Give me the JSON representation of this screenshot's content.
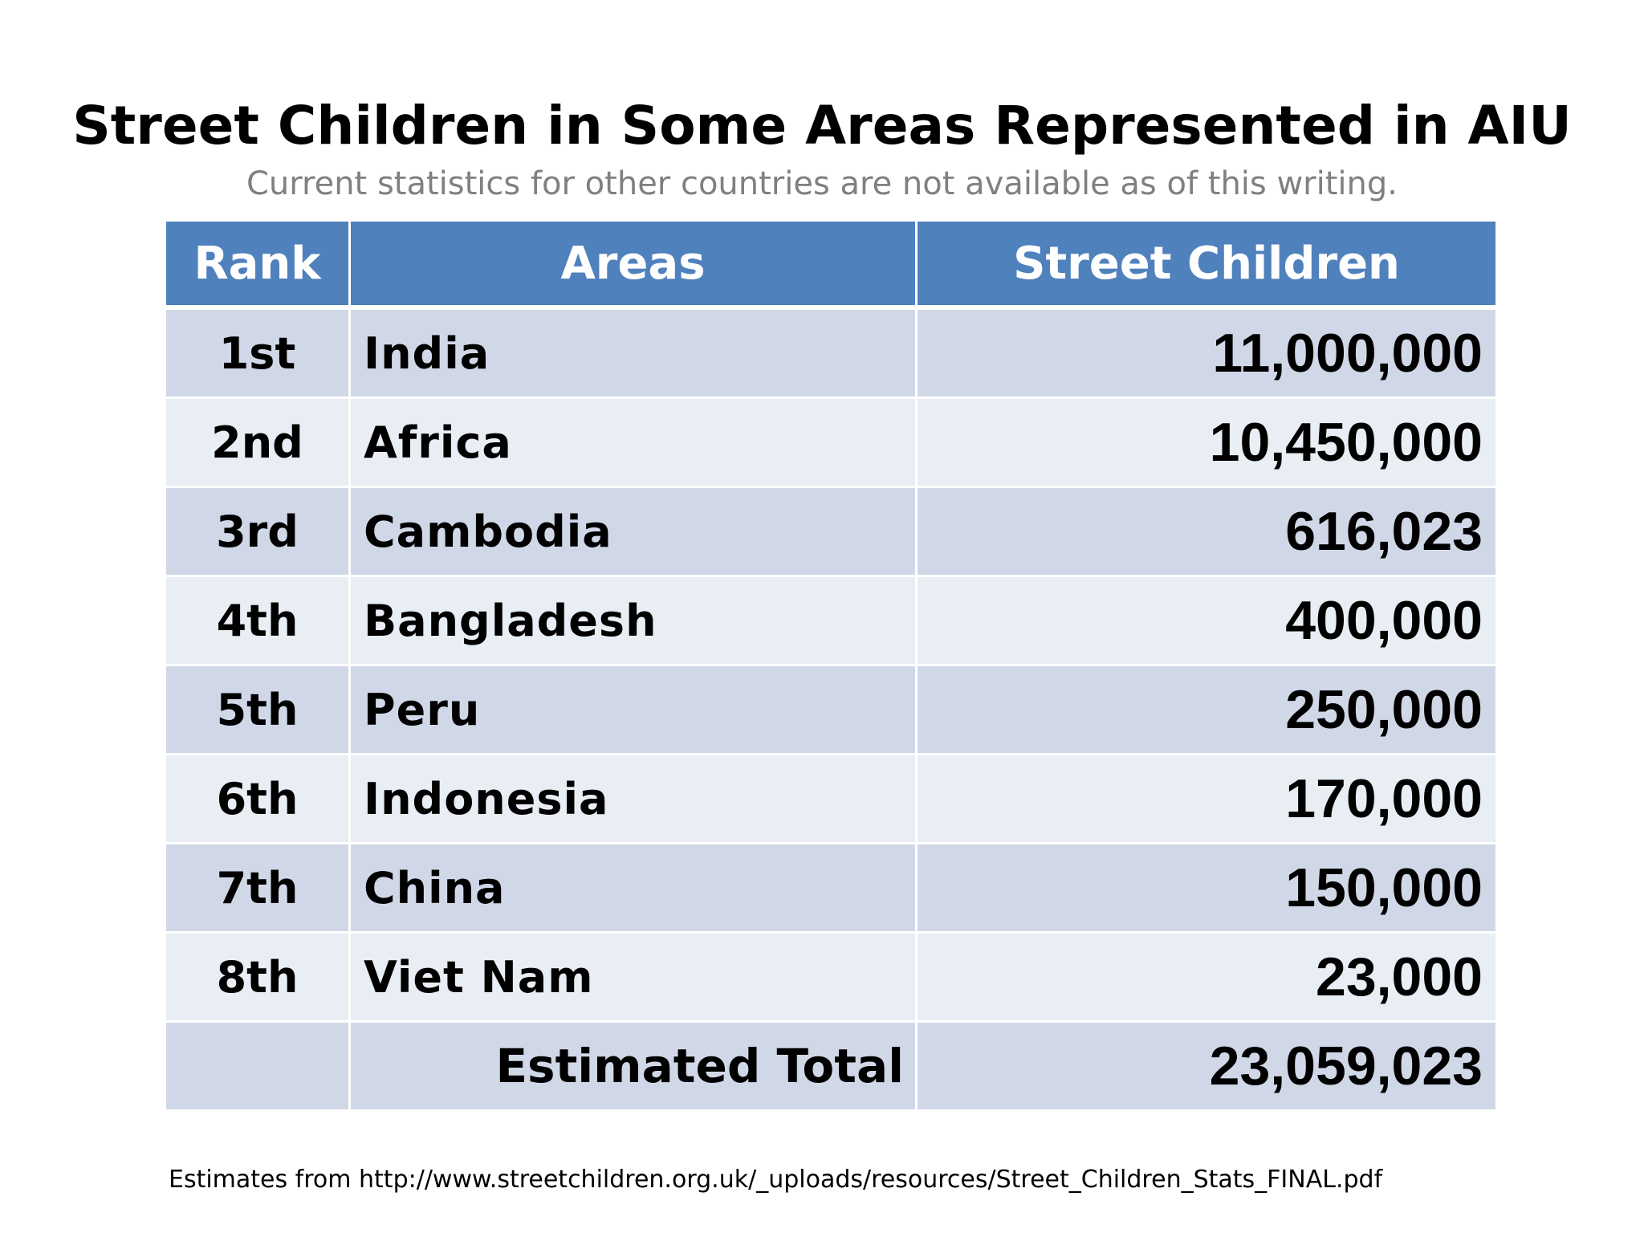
{
  "slide": {
    "title": "Street Children in Some Areas Represented in AIU",
    "subtitle": "Current statistics for other countries are not available as of this writing.",
    "source": "Estimates from http://www.streetchildren.org.uk/_uploads/resources/Street_Children_Stats_FINAL.pdf"
  },
  "table": {
    "headers": [
      "Rank",
      "Areas",
      "Street Children"
    ],
    "rows": [
      {
        "rank": "1st",
        "area": "India",
        "count": "11,000,000"
      },
      {
        "rank": "2nd",
        "area": "Africa",
        "count": "10,450,000"
      },
      {
        "rank": "3rd",
        "area": "Cambodia",
        "count": "616,023"
      },
      {
        "rank": "4th",
        "area": "Bangladesh",
        "count": "400,000"
      },
      {
        "rank": "5th",
        "area": "Peru",
        "count": "250,000"
      },
      {
        "rank": "6th",
        "area": "Indonesia",
        "count": "170,000"
      },
      {
        "rank": "7th",
        "area": "China",
        "count": "150,000"
      },
      {
        "rank": "8th",
        "area": "Viet Nam",
        "count": "23,000"
      }
    ],
    "total": {
      "rank": "",
      "label": "Estimated Total",
      "count": "23,059,023"
    }
  },
  "colors": {
    "header_bg": "#4f81bd",
    "row_dark": "#d0d8e8",
    "row_light": "#e9edf4",
    "subtitle": "#808080"
  }
}
